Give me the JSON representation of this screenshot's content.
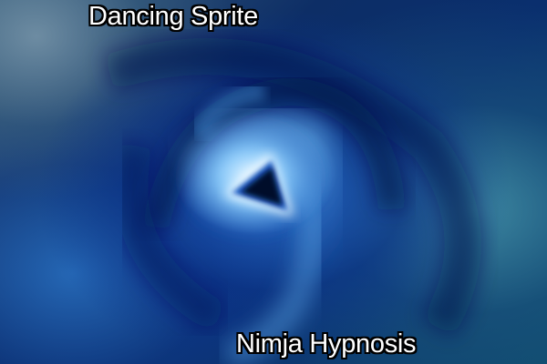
{
  "cover": {
    "title": "Dancing Sprite",
    "artist": "Nimja Hypnosis"
  },
  "colors": {
    "deep_blue": "#0a2f6e",
    "highlight": "#cfeaff",
    "teal": "#3f8fa0",
    "text": "#ffffff",
    "outline": "#000000"
  }
}
